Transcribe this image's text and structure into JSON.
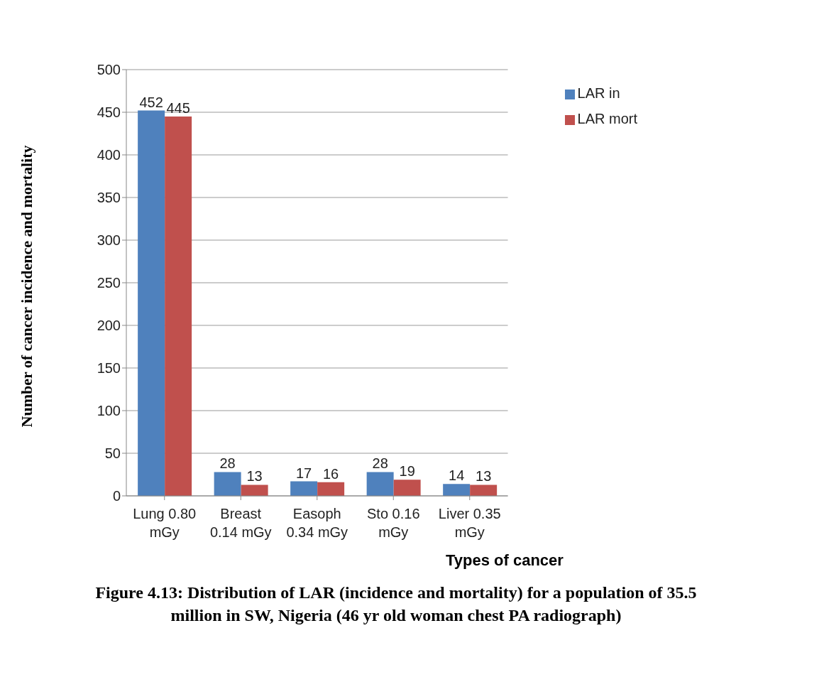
{
  "chart_data": {
    "type": "bar",
    "categories": [
      "Lung 0.80 mGy",
      "Breast 0.14 mGy",
      "Easoph 0.34 mGy",
      "Sto 0.16 mGy",
      "Liver 0.35 mGy"
    ],
    "series": [
      {
        "name": "LAR in",
        "color": "#4f81bd",
        "values": [
          452,
          28,
          17,
          28,
          14
        ]
      },
      {
        "name": "LAR mort",
        "color": "#c0504d",
        "values": [
          445,
          13,
          16,
          19,
          13
        ]
      }
    ],
    "ylim": [
      0,
      500
    ],
    "yticks": [
      0,
      50,
      100,
      150,
      200,
      250,
      300,
      350,
      400,
      450,
      500
    ],
    "grid": "y",
    "legend": "top right",
    "data_labels": true,
    "xlabel": "Types of cancer",
    "ylabel": "Number of cancer incidence and mortality",
    "annotations": [
      "Figure 4.13: Distribution of LAR (incidence and mortality) for a population of 35.5 million  in SW, Nigeria (46 yr old woman chest  PA radiograph)"
    ]
  }
}
